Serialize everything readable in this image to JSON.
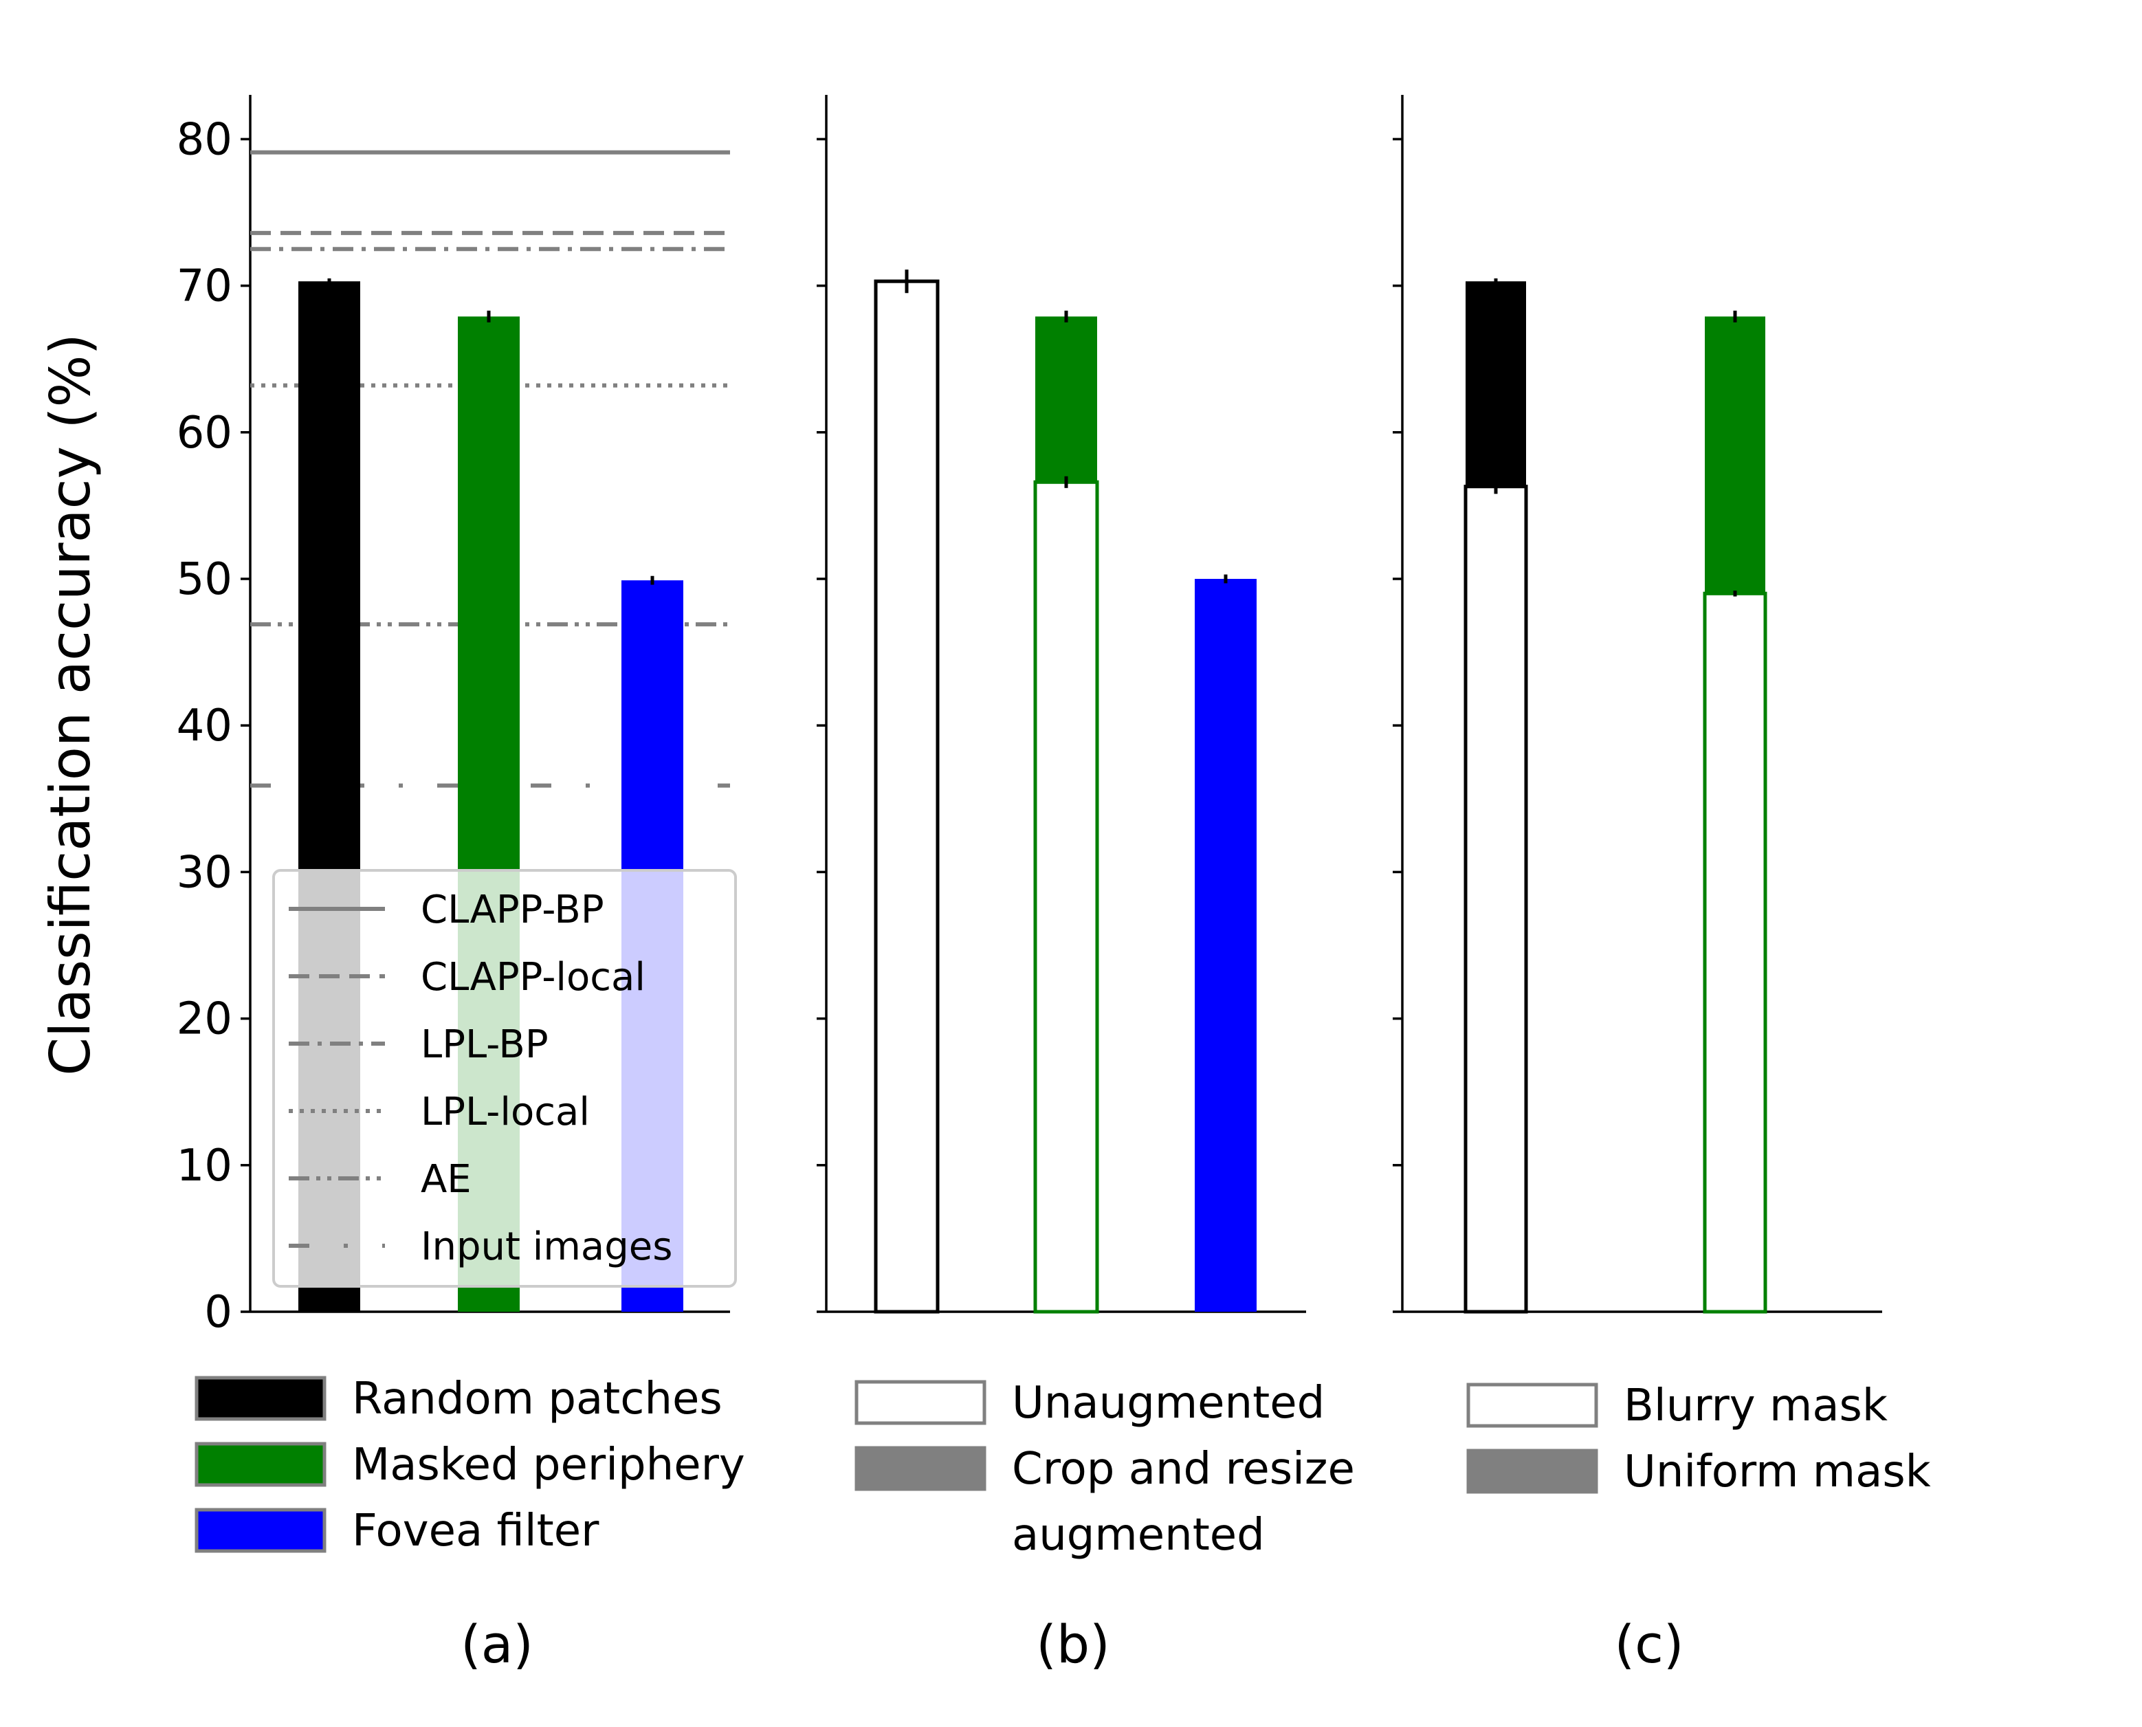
{
  "chart_data": {
    "type": "bar",
    "ylabel": "Classification accuracy (%)",
    "ylim": [
      0,
      83
    ],
    "yticks": [
      0,
      10,
      20,
      30,
      40,
      50,
      60,
      70,
      80
    ],
    "grid": false,
    "colors": {
      "random_patches": "#000000",
      "masked_periphery": "#008000",
      "fovea_filter": "#0000ff",
      "reference_lines": "#808080",
      "legend_swatch_gray": "#808080"
    },
    "panels": [
      {
        "label": "(a)",
        "bars": [
          {
            "category": "Random patches",
            "value": 70.3,
            "error": 0.2,
            "color": "#000000"
          },
          {
            "category": "Masked periphery",
            "value": 67.9,
            "error": 0.4,
            "color": "#008000"
          },
          {
            "category": "Fovea filter",
            "value": 49.9,
            "error": 0.3,
            "color": "#0000ff"
          }
        ],
        "reference_lines": [
          {
            "name": "CLAPP-BP",
            "value": 79.1,
            "style": "solid"
          },
          {
            "name": "CLAPP-local",
            "value": 73.6,
            "style": "dashed"
          },
          {
            "name": "LPL-BP",
            "value": 72.5,
            "style": "dashdot"
          },
          {
            "name": "LPL-local",
            "value": 63.2,
            "style": "dotted"
          },
          {
            "name": "AE",
            "value": 46.9,
            "style": "dashdotdot"
          },
          {
            "name": "Input images",
            "value": 35.9,
            "style": "loosedashdot"
          }
        ],
        "legend": {
          "placement": "lower-center",
          "entries": [
            "CLAPP-BP",
            "CLAPP-local",
            "LPL-BP",
            "LPL-local",
            "AE",
            "Input images"
          ]
        }
      },
      {
        "label": "(b)",
        "bars": [
          {
            "category": "Random patches",
            "segments": [
              {
                "kind": "Unaugmented",
                "value": 70.3,
                "error": 0.8
              }
            ]
          },
          {
            "category": "Masked periphery",
            "segments": [
              {
                "kind": "Unaugmented",
                "value": 56.6,
                "error": 0.4
              },
              {
                "kind": "Crop and resize augmented",
                "value": 67.9,
                "error": 0.4
              }
            ]
          },
          {
            "category": "Fovea filter",
            "segments": [
              {
                "kind": "Crop and resize augmented",
                "value": 50.0,
                "error": 0.3
              }
            ]
          }
        ]
      },
      {
        "label": "(c)",
        "bars": [
          {
            "category": "Random patches",
            "segments": [
              {
                "kind": "Blurry mask",
                "value": 56.3,
                "error": 0.5
              },
              {
                "kind": "Uniform mask",
                "value": 70.3,
                "error": 0.2
              }
            ]
          },
          {
            "category": "Masked periphery",
            "segments": [
              {
                "kind": "Blurry mask",
                "value": 49.0,
                "error": 0.2
              },
              {
                "kind": "Uniform mask",
                "value": 67.9,
                "error": 0.4
              }
            ]
          }
        ]
      }
    ],
    "bottom_legends": [
      {
        "items": [
          {
            "label": "Random patches",
            "fill": "#000000"
          },
          {
            "label": "Masked periphery",
            "fill": "#008000"
          },
          {
            "label": "Fovea filter",
            "fill": "#0000ff"
          }
        ]
      },
      {
        "items": [
          {
            "label": "Unaugmented",
            "fill": "#ffffff"
          },
          {
            "label": "Crop and resize",
            "label2": "augmented",
            "fill": "#808080"
          }
        ]
      },
      {
        "items": [
          {
            "label": "Blurry mask",
            "fill": "#ffffff"
          },
          {
            "label": "Uniform mask",
            "fill": "#808080"
          }
        ]
      }
    ]
  }
}
